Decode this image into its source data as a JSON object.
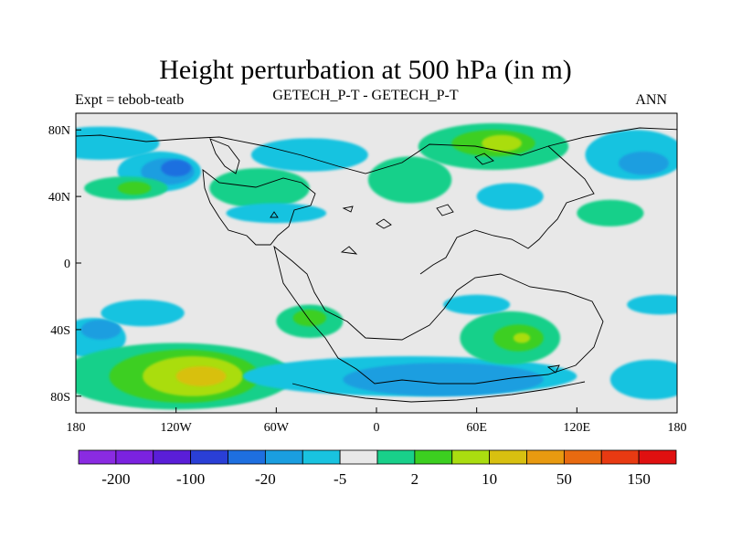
{
  "title": "Height perturbation at 500 hPa (in m)",
  "left_string": "Expt = tebob-teatb",
  "center_string": "GETECH_P-T - GETECH_P-T",
  "right_string": "ANN",
  "map": {
    "projection": "cylindrical equidistant",
    "lon_range": [
      -180,
      180
    ],
    "lat_range": [
      -90,
      90
    ],
    "background_color": "#e8e8e8",
    "x_ticks": [
      {
        "lon": -180,
        "label": "180"
      },
      {
        "lon": -120,
        "label": "120W"
      },
      {
        "lon": -60,
        "label": "60W"
      },
      {
        "lon": 0,
        "label": "0"
      },
      {
        "lon": 60,
        "label": "60E"
      },
      {
        "lon": 120,
        "label": "120E"
      },
      {
        "lon": 180,
        "label": "180"
      }
    ],
    "y_ticks": [
      {
        "lat": 80,
        "label": "80N"
      },
      {
        "lat": 40,
        "label": "40N"
      },
      {
        "lat": 0,
        "label": "0"
      },
      {
        "lat": -40,
        "label": "40S"
      },
      {
        "lat": -80,
        "label": "80S"
      }
    ]
  },
  "colorbar": {
    "colors": [
      "#8a2be2",
      "#7b22e0",
      "#5a1ed8",
      "#2a3fd6",
      "#1e6fe0",
      "#1a9ee0",
      "#19c3e0",
      "#e8e8e8",
      "#19d08a",
      "#3ccf20",
      "#aadd10",
      "#d8c010",
      "#e89a10",
      "#e86a10",
      "#e83a12",
      "#e01010"
    ],
    "labels": [
      {
        "boundary": 1,
        "text": "-200"
      },
      {
        "boundary": 3,
        "text": "-100"
      },
      {
        "boundary": 5,
        "text": "-20"
      },
      {
        "boundary": 7,
        "text": "-5"
      },
      {
        "boundary": 9,
        "text": "2"
      },
      {
        "boundary": 11,
        "text": "10"
      },
      {
        "boundary": 13,
        "text": "50"
      },
      {
        "boundary": 15,
        "text": "150"
      }
    ]
  },
  "fields": [
    {
      "lon": -130,
      "lat": 55,
      "rx": 25,
      "ry": 12,
      "level": 6
    },
    {
      "lon": -125,
      "lat": 55,
      "rx": 16,
      "ry": 8,
      "level": 5
    },
    {
      "lon": -120,
      "lat": 57,
      "rx": 9,
      "ry": 5,
      "level": 4
    },
    {
      "lon": -165,
      "lat": 72,
      "rx": 35,
      "ry": 10,
      "level": 6
    },
    {
      "lon": -150,
      "lat": 45,
      "rx": 25,
      "ry": 7,
      "level": 8
    },
    {
      "lon": -145,
      "lat": 45,
      "rx": 10,
      "ry": 4,
      "level": 9
    },
    {
      "lon": -70,
      "lat": 45,
      "rx": 30,
      "ry": 12,
      "level": 8
    },
    {
      "lon": -60,
      "lat": 30,
      "rx": 30,
      "ry": 6,
      "level": 6
    },
    {
      "lon": -40,
      "lat": 65,
      "rx": 35,
      "ry": 10,
      "level": 6
    },
    {
      "lon": 20,
      "lat": 50,
      "rx": 25,
      "ry": 14,
      "level": 8
    },
    {
      "lon": 70,
      "lat": 70,
      "rx": 45,
      "ry": 14,
      "level": 8
    },
    {
      "lon": 70,
      "lat": 72,
      "rx": 25,
      "ry": 8,
      "level": 9
    },
    {
      "lon": 75,
      "lat": 72,
      "rx": 12,
      "ry": 5,
      "level": 10
    },
    {
      "lon": 80,
      "lat": 40,
      "rx": 20,
      "ry": 8,
      "level": 6
    },
    {
      "lon": 155,
      "lat": 65,
      "rx": 30,
      "ry": 15,
      "level": 6
    },
    {
      "lon": 160,
      "lat": 60,
      "rx": 15,
      "ry": 7,
      "level": 5
    },
    {
      "lon": 140,
      "lat": 30,
      "rx": 20,
      "ry": 8,
      "level": 8
    },
    {
      "lon": -40,
      "lat": -35,
      "rx": 20,
      "ry": 10,
      "level": 8
    },
    {
      "lon": -40,
      "lat": -33,
      "rx": 10,
      "ry": 5,
      "level": 9
    },
    {
      "lon": -170,
      "lat": -45,
      "rx": 20,
      "ry": 12,
      "level": 6
    },
    {
      "lon": -165,
      "lat": -40,
      "rx": 12,
      "ry": 6,
      "level": 5
    },
    {
      "lon": -140,
      "lat": -30,
      "rx": 25,
      "ry": 8,
      "level": 6
    },
    {
      "lon": -120,
      "lat": -68,
      "rx": 70,
      "ry": 20,
      "level": 8
    },
    {
      "lon": -115,
      "lat": -68,
      "rx": 45,
      "ry": 16,
      "level": 9
    },
    {
      "lon": -110,
      "lat": -68,
      "rx": 30,
      "ry": 12,
      "level": 10
    },
    {
      "lon": -105,
      "lat": -68,
      "rx": 15,
      "ry": 6,
      "level": 11
    },
    {
      "lon": 20,
      "lat": -68,
      "rx": 100,
      "ry": 12,
      "level": 6
    },
    {
      "lon": 40,
      "lat": -70,
      "rx": 60,
      "ry": 10,
      "level": 5
    },
    {
      "lon": 80,
      "lat": -45,
      "rx": 30,
      "ry": 16,
      "level": 8
    },
    {
      "lon": 85,
      "lat": -45,
      "rx": 15,
      "ry": 8,
      "level": 9
    },
    {
      "lon": 87,
      "lat": -45,
      "rx": 5,
      "ry": 3,
      "level": 10
    },
    {
      "lon": 60,
      "lat": -25,
      "rx": 20,
      "ry": 6,
      "level": 6
    },
    {
      "lon": 170,
      "lat": -25,
      "rx": 20,
      "ry": 6,
      "level": 6
    },
    {
      "lon": 165,
      "lat": -70,
      "rx": 25,
      "ry": 12,
      "level": 6
    }
  ]
}
